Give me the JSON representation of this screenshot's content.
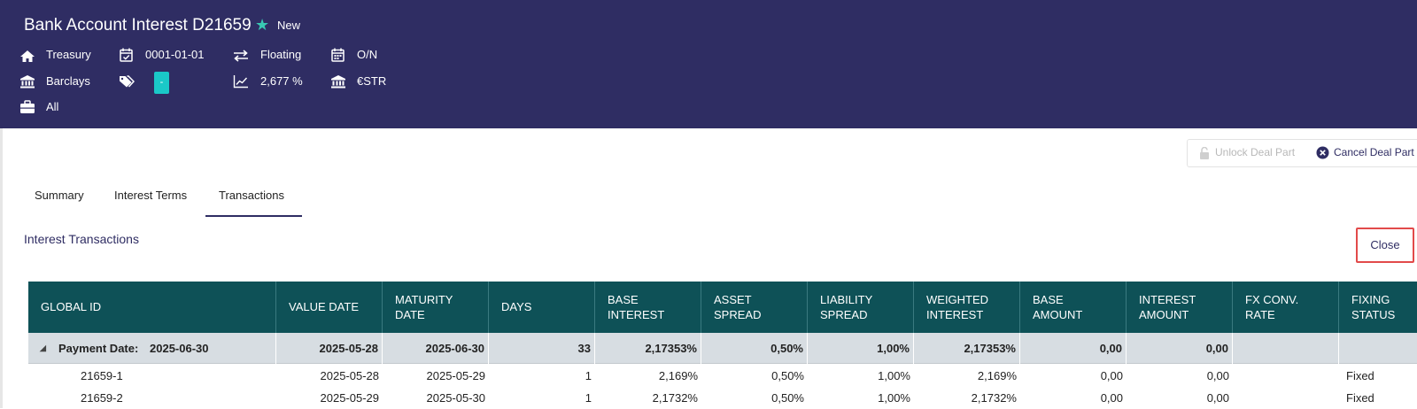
{
  "header": {
    "title": "Bank Account Interest D21659",
    "status": "New",
    "meta": {
      "entity": "Treasury",
      "counterparty": "Barclays",
      "portfolio": "All",
      "date": "0001-01-01",
      "tag": "-",
      "rate_type": "Floating",
      "rate": "2,677 %",
      "tenor": "O/N",
      "index": "€STR"
    }
  },
  "toolbar": {
    "unlock_label": "Unlock Deal Part",
    "cancel_label": "Cancel Deal Part"
  },
  "tabs": [
    "Summary",
    "Interest Terms",
    "Transactions"
  ],
  "active_tab": "Transactions",
  "section": {
    "title": "Interest Transactions",
    "close_label": "Close"
  },
  "table": {
    "columns": [
      "GLOBAL ID",
      "VALUE DATE",
      "MATURITY DATE",
      "DAYS",
      "BASE INTEREST",
      "ASSET SPREAD",
      "LIABILITY SPREAD",
      "WEIGHTED INTEREST",
      "BASE AMOUNT",
      "INTEREST AMOUNT",
      "FX CONV. RATE",
      "FIXING STATUS"
    ],
    "group": {
      "label": "Payment Date:",
      "payment_date": "2025-06-30",
      "value_date": "2025-05-28",
      "maturity_date": "2025-06-30",
      "days": "33",
      "base_interest": "2,17353%",
      "asset_spread": "0,50%",
      "liability_spread": "1,00%",
      "weighted_interest": "2,17353%",
      "base_amount": "0,00",
      "interest_amount": "0,00",
      "fx_rate": "",
      "fixing_status": ""
    },
    "rows": [
      {
        "global_id": "21659-1",
        "value_date": "2025-05-28",
        "maturity_date": "2025-05-29",
        "days": "1",
        "base_interest": "2,169%",
        "asset_spread": "0,50%",
        "liability_spread": "1,00%",
        "weighted_interest": "2,169%",
        "base_amount": "0,00",
        "interest_amount": "0,00",
        "fx_rate": "",
        "fixing_status": "Fixed"
      },
      {
        "global_id": "21659-2",
        "value_date": "2025-05-29",
        "maturity_date": "2025-05-30",
        "days": "1",
        "base_interest": "2,1732%",
        "asset_spread": "0,50%",
        "liability_spread": "1,00%",
        "weighted_interest": "2,1732%",
        "base_amount": "0,00",
        "interest_amount": "0,00",
        "fx_rate": "",
        "fixing_status": "Fixed"
      }
    ]
  },
  "colors": {
    "header_bg": "#2f2d63",
    "table_header_bg": "#0e5157",
    "accent_teal": "#39c9b3",
    "highlight_border": "#e24a4a"
  }
}
